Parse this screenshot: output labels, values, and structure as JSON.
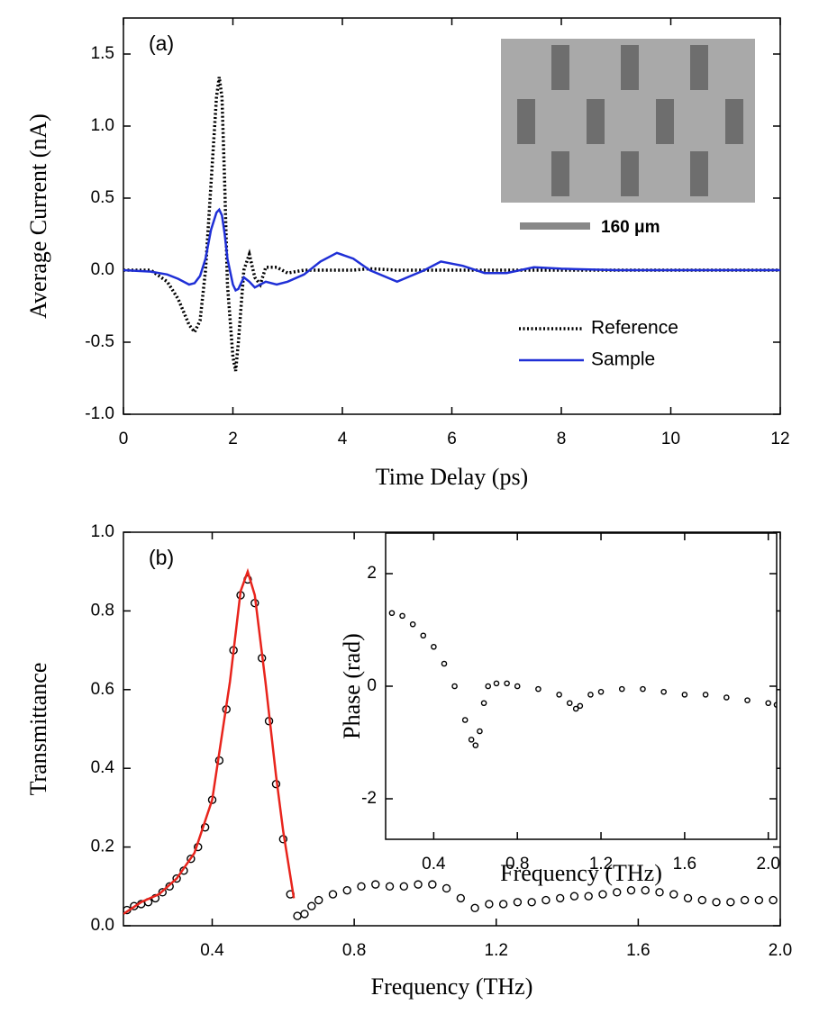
{
  "chart_data": [
    {
      "type": "line",
      "panel_label": "(a)",
      "xlabel": "Time Delay (ps)",
      "ylabel": "Average Current (nA)",
      "xlim": [
        0,
        12
      ],
      "ylim": [
        -1.0,
        1.75
      ],
      "xticks": [
        0,
        2,
        4,
        6,
        8,
        10,
        12
      ],
      "yticks": [
        {
          "value": -1.0,
          "label": "-1.0"
        },
        -0.5,
        {
          "value": 0.0,
          "label": "0.0"
        },
        0.5,
        {
          "value": 1.0,
          "label": "1.0"
        },
        1.5
      ],
      "legend": "lower right",
      "scale_bar_label": "160 μm",
      "x": [
        0,
        0.5,
        0.8,
        1.0,
        1.2,
        1.3,
        1.4,
        1.5,
        1.6,
        1.7,
        1.75,
        1.8,
        1.85,
        1.9,
        2.0,
        2.05,
        2.1,
        2.2,
        2.3,
        2.4,
        2.5,
        2.6,
        2.8,
        3.0,
        3.3,
        3.6,
        3.9,
        4.2,
        4.5,
        5.0,
        5.5,
        5.8,
        6.2,
        6.6,
        7.0,
        7.5,
        8.0,
        9,
        10,
        11,
        12
      ],
      "series": [
        {
          "name": "Reference",
          "color": "#000000",
          "dash": "dotted",
          "values": [
            0,
            0,
            -0.08,
            -0.2,
            -0.38,
            -0.43,
            -0.35,
            0.0,
            0.6,
            1.2,
            1.34,
            1.2,
            0.6,
            -0.1,
            -0.6,
            -0.7,
            -0.5,
            0.0,
            0.11,
            -0.05,
            -0.1,
            0.02,
            0.02,
            -0.02,
            0.0,
            0.0,
            0.0,
            0.0,
            0.01,
            0.0,
            0,
            0,
            0,
            0,
            0,
            0,
            0,
            0,
            0,
            0,
            0
          ]
        },
        {
          "name": "Sample",
          "color": "#1f2fd6",
          "dash": "solid",
          "values": [
            0,
            -0.01,
            -0.03,
            -0.06,
            -0.1,
            -0.09,
            -0.04,
            0.08,
            0.28,
            0.4,
            0.42,
            0.38,
            0.25,
            0.08,
            -0.1,
            -0.14,
            -0.13,
            -0.05,
            -0.08,
            -0.12,
            -0.1,
            -0.08,
            -0.1,
            -0.08,
            -0.03,
            0.06,
            0.12,
            0.08,
            0.0,
            -0.08,
            0.0,
            0.06,
            0.03,
            -0.02,
            -0.02,
            0.02,
            0.01,
            0,
            0,
            0,
            0
          ]
        }
      ]
    },
    {
      "type": "scatter",
      "panel_label": "(b)",
      "xlabel": "Frequency (THz)",
      "ylabel": "Transmittance",
      "xlim": [
        0.15,
        2.0
      ],
      "ylim": [
        0,
        1.0
      ],
      "xticks": [
        0.4,
        0.8,
        1.2,
        1.6,
        {
          "value": 2.0,
          "label": "2.0"
        }
      ],
      "yticks": [
        {
          "value": 0.0,
          "label": "0.0"
        },
        0.2,
        0.4,
        0.6,
        0.8,
        {
          "value": 1.0,
          "label": "1.0"
        }
      ],
      "series": [
        {
          "mode": "markers",
          "color": "#000000",
          "x": [
            0.16,
            0.18,
            0.2,
            0.22,
            0.24,
            0.26,
            0.28,
            0.3,
            0.32,
            0.34,
            0.36,
            0.38,
            0.4,
            0.42,
            0.44,
            0.46,
            0.48,
            0.5,
            0.52,
            0.54,
            0.56,
            0.58,
            0.6,
            0.62,
            0.64,
            0.66,
            0.68,
            0.7,
            0.74,
            0.78,
            0.82,
            0.86,
            0.9,
            0.94,
            0.98,
            1.02,
            1.06,
            1.1,
            1.14,
            1.18,
            1.22,
            1.26,
            1.3,
            1.34,
            1.38,
            1.42,
            1.46,
            1.5,
            1.54,
            1.58,
            1.62,
            1.66,
            1.7,
            1.74,
            1.78,
            1.82,
            1.86,
            1.9,
            1.94,
            1.98
          ],
          "values": [
            0.04,
            0.05,
            0.055,
            0.06,
            0.07,
            0.085,
            0.1,
            0.12,
            0.14,
            0.17,
            0.2,
            0.25,
            0.32,
            0.42,
            0.55,
            0.7,
            0.84,
            0.88,
            0.82,
            0.68,
            0.52,
            0.36,
            0.22,
            0.08,
            0.025,
            0.03,
            0.05,
            0.065,
            0.08,
            0.09,
            0.1,
            0.105,
            0.1,
            0.1,
            0.105,
            0.105,
            0.095,
            0.07,
            0.045,
            0.055,
            0.055,
            0.06,
            0.06,
            0.065,
            0.07,
            0.075,
            0.075,
            0.08,
            0.085,
            0.09,
            0.09,
            0.085,
            0.08,
            0.07,
            0.065,
            0.06,
            0.06,
            0.065,
            0.065,
            0.065
          ]
        },
        {
          "mode": "line",
          "color": "#e8241c",
          "x": [
            0.15,
            0.2,
            0.25,
            0.3,
            0.35,
            0.4,
            0.45,
            0.48,
            0.5,
            0.52,
            0.55,
            0.58,
            0.6,
            0.63
          ],
          "values": [
            0.03,
            0.06,
            0.08,
            0.12,
            0.185,
            0.32,
            0.62,
            0.85,
            0.9,
            0.84,
            0.62,
            0.38,
            0.24,
            0.07
          ]
        }
      ]
    },
    {
      "type": "scatter",
      "xlabel": "Frequency (THz)",
      "ylabel": "Phase (rad)",
      "xlim": [
        0.17,
        2.04
      ],
      "ylim": [
        -2.72,
        2.72
      ],
      "xticks": [
        0.4,
        0.8,
        1.2,
        1.6,
        {
          "value": 2.0,
          "label": "2.0"
        }
      ],
      "yticks": [
        -2,
        0,
        2
      ],
      "series": [
        {
          "mode": "markers",
          "color": "#000000",
          "x": [
            0.2,
            0.25,
            0.3,
            0.35,
            0.4,
            0.45,
            0.5,
            0.55,
            0.58,
            0.6,
            0.62,
            0.64,
            0.66,
            0.7,
            0.75,
            0.8,
            0.9,
            1.0,
            1.05,
            1.08,
            1.1,
            1.15,
            1.2,
            1.3,
            1.4,
            1.5,
            1.6,
            1.7,
            1.8,
            1.9,
            2.0,
            2.04
          ],
          "values": [
            1.3,
            1.25,
            1.1,
            0.9,
            0.7,
            0.4,
            0.0,
            -0.6,
            -0.95,
            -1.05,
            -0.8,
            -0.3,
            0.0,
            0.05,
            0.05,
            0.0,
            -0.05,
            -0.15,
            -0.3,
            -0.4,
            -0.35,
            -0.15,
            -0.1,
            -0.05,
            -0.05,
            -0.1,
            -0.15,
            -0.15,
            -0.2,
            -0.25,
            -0.3,
            -0.33
          ]
        }
      ]
    }
  ]
}
